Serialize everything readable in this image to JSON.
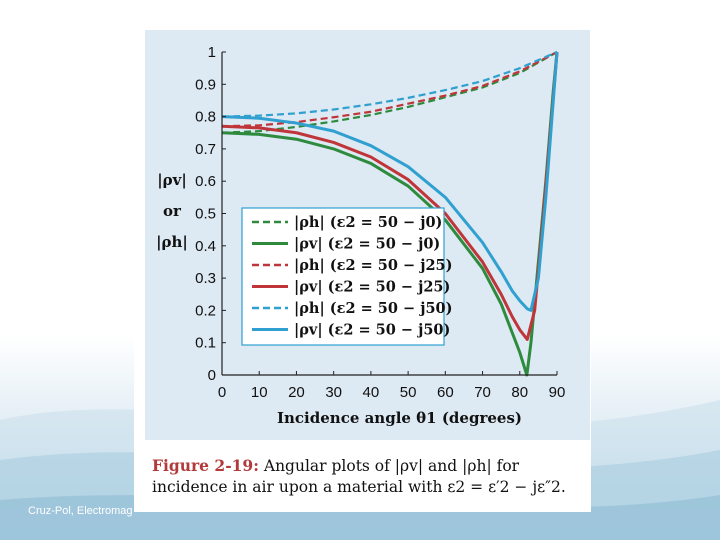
{
  "footer": {
    "text": "Cruz-Pol, Electromag"
  },
  "caption": {
    "label": "Figure 2-19:",
    "text": "Angular plots of |ρv| and |ρh| for incidence in air upon a material with ε2 = ε′2 − jε″2."
  },
  "chart_data": {
    "type": "line",
    "xlabel": "Incidence angle θ1 (degrees)",
    "ylabel_lines": [
      "|ρv|",
      "or",
      "|ρh|"
    ],
    "xlim": [
      0,
      90
    ],
    "ylim": [
      0,
      1
    ],
    "xticks": [
      "0",
      "10",
      "20",
      "30",
      "40",
      "50",
      "60",
      "70",
      "80",
      "90"
    ],
    "yticks": [
      "0",
      "0.1",
      "0.2",
      "0.3",
      "0.4",
      "0.5",
      "0.6",
      "0.7",
      "0.8",
      "0.9",
      "1"
    ],
    "legend_position": "center-left",
    "series": [
      {
        "name": "|ρh| (ε2 = 50 − j0)",
        "color": "#2e8b3e",
        "dash": true,
        "x": [
          0,
          10,
          20,
          30,
          40,
          50,
          60,
          70,
          80,
          90
        ],
        "y": [
          0.75,
          0.755,
          0.768,
          0.785,
          0.805,
          0.83,
          0.86,
          0.89,
          0.935,
          1.0
        ]
      },
      {
        "name": "|ρv| (ε2 = 50 − j0)",
        "color": "#2e8b3e",
        "dash": false,
        "x": [
          0,
          10,
          20,
          30,
          40,
          50,
          60,
          70,
          75,
          78,
          80,
          81.9,
          83,
          85,
          87,
          89,
          90
        ],
        "y": [
          0.75,
          0.745,
          0.73,
          0.7,
          0.655,
          0.585,
          0.48,
          0.33,
          0.22,
          0.13,
          0.07,
          0.0,
          0.1,
          0.35,
          0.6,
          0.88,
          1.0
        ]
      },
      {
        "name": "|ρh| (ε2 = 50 − j25)",
        "color": "#c0353a",
        "dash": true,
        "x": [
          0,
          10,
          20,
          30,
          40,
          50,
          60,
          70,
          80,
          90
        ],
        "y": [
          0.77,
          0.773,
          0.783,
          0.798,
          0.815,
          0.84,
          0.865,
          0.895,
          0.94,
          1.0
        ]
      },
      {
        "name": "|ρv| (ε2 = 50 − j25)",
        "color": "#c0353a",
        "dash": false,
        "x": [
          0,
          10,
          20,
          30,
          40,
          50,
          60,
          70,
          75,
          78,
          80,
          82,
          84,
          86,
          88,
          90
        ],
        "y": [
          0.77,
          0.765,
          0.75,
          0.72,
          0.675,
          0.605,
          0.5,
          0.35,
          0.25,
          0.18,
          0.14,
          0.11,
          0.2,
          0.45,
          0.72,
          1.0
        ]
      },
      {
        "name": "|ρh| (ε2 = 50 − j50)",
        "color": "#2fa0d0",
        "dash": true,
        "x": [
          0,
          10,
          20,
          30,
          40,
          50,
          60,
          70,
          80,
          90
        ],
        "y": [
          0.8,
          0.803,
          0.81,
          0.822,
          0.838,
          0.858,
          0.882,
          0.91,
          0.95,
          1.0
        ]
      },
      {
        "name": "|ρv| (ε2 = 50 − j50)",
        "color": "#2fa0d0",
        "dash": false,
        "x": [
          0,
          10,
          20,
          30,
          40,
          50,
          60,
          70,
          75,
          78,
          80,
          82,
          83,
          85,
          87,
          89,
          90
        ],
        "y": [
          0.8,
          0.795,
          0.78,
          0.755,
          0.71,
          0.645,
          0.55,
          0.41,
          0.32,
          0.26,
          0.23,
          0.205,
          0.2,
          0.3,
          0.55,
          0.85,
          1.0
        ]
      }
    ]
  }
}
